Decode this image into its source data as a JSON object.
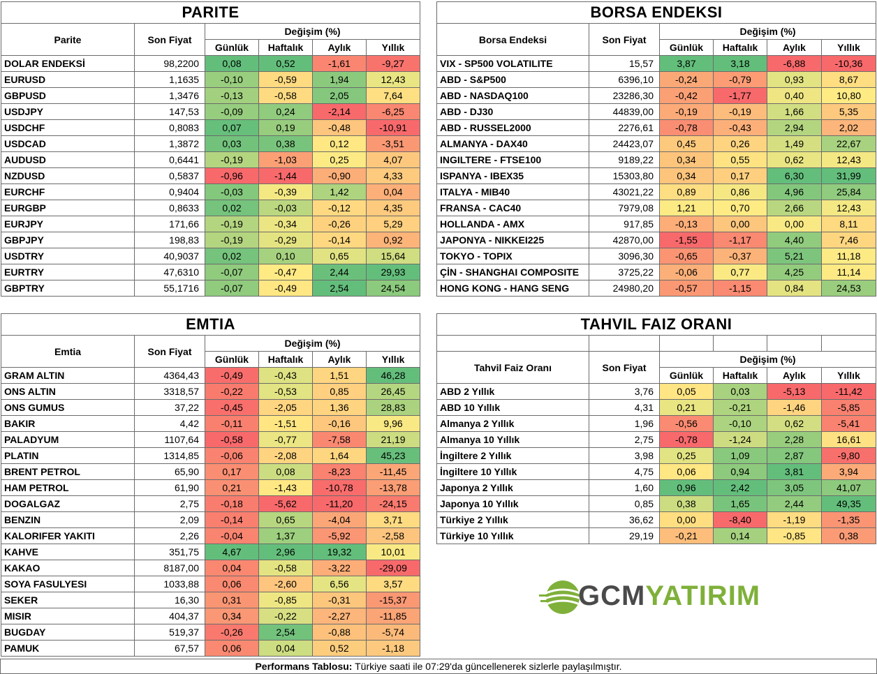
{
  "footer": {
    "bold": "Performans Tablosu:",
    "text": " Türkiye saati ile 07:29'da güncellenerek sizlerle paylaşılmıştır."
  },
  "logo": {
    "part1": "GCM",
    "part2": "YATIRIM"
  },
  "headers": {
    "degisim": "Değişim (%)",
    "gunluk": "Günlük",
    "haftalik": "Haftalık",
    "aylik": "Aylık",
    "yillik": "Yıllık",
    "son_fiyat": "Son Fiyat"
  },
  "parite": {
    "title": "PARITE",
    "col": "Parite",
    "rows": [
      [
        "DOLAR ENDEKSİ",
        "98,2200",
        "0,08",
        "0,52",
        "-1,61",
        "-9,27"
      ],
      [
        "EURUSD",
        "1,1635",
        "-0,10",
        "-0,59",
        "1,94",
        "12,43"
      ],
      [
        "GBPUSD",
        "1,3476",
        "-0,13",
        "-0,58",
        "2,05",
        "7,64"
      ],
      [
        "USDJPY",
        "147,53",
        "-0,09",
        "0,24",
        "-2,14",
        "-6,25"
      ],
      [
        "USDCHF",
        "0,8083",
        "0,07",
        "0,19",
        "-0,48",
        "-10,91"
      ],
      [
        "USDCAD",
        "1,3872",
        "0,03",
        "0,38",
        "0,12",
        "-3,51"
      ],
      [
        "AUDUSD",
        "0,6441",
        "-0,19",
        "-1,03",
        "0,25",
        "4,07"
      ],
      [
        "NZDUSD",
        "0,5837",
        "-0,96",
        "-1,44",
        "-0,90",
        "4,33"
      ],
      [
        "EURCHF",
        "0,9404",
        "-0,03",
        "-0,39",
        "1,42",
        "0,04"
      ],
      [
        "EURGBP",
        "0,8633",
        "0,02",
        "-0,03",
        "-0,12",
        "4,35"
      ],
      [
        "EURJPY",
        "171,66",
        "-0,19",
        "-0,34",
        "-0,26",
        "5,29"
      ],
      [
        "GBPJPY",
        "198,83",
        "-0,19",
        "-0,29",
        "-0,14",
        "0,92"
      ],
      [
        "USDTRY",
        "40,9037",
        "0,02",
        "0,10",
        "0,65",
        "15,64"
      ],
      [
        "EURTRY",
        "47,6310",
        "-0,07",
        "-0,47",
        "2,44",
        "29,93"
      ],
      [
        "GBPTRY",
        "55,1716",
        "-0,07",
        "-0,49",
        "2,54",
        "24,54"
      ]
    ]
  },
  "borsa": {
    "title": "BORSA ENDEKSI",
    "col": "Borsa Endeksi",
    "rows": [
      [
        "VIX  - SP500 VOLATILITE",
        "15,57",
        "3,87",
        "3,18",
        "-6,88",
        "-10,36"
      ],
      [
        "ABD - S&P500",
        "6396,10",
        "-0,24",
        "-0,79",
        "0,93",
        "8,67"
      ],
      [
        "ABD - NASDAQ100",
        "23286,30",
        "-0,42",
        "-1,77",
        "0,40",
        "10,80"
      ],
      [
        "ABD - DJ30",
        "44839,00",
        "-0,19",
        "-0,19",
        "1,66",
        "5,35"
      ],
      [
        "ABD - RUSSEL2000",
        "2276,61",
        "-0,78",
        "-0,43",
        "2,94",
        "2,02"
      ],
      [
        "ALMANYA - DAX40",
        "24423,07",
        "0,45",
        "0,26",
        "1,49",
        "22,67"
      ],
      [
        "INGILTERE - FTSE100",
        "9189,22",
        "0,34",
        "0,55",
        "0,62",
        "12,43"
      ],
      [
        "ISPANYA - IBEX35",
        "15303,80",
        "0,34",
        "0,17",
        "6,30",
        "31,99"
      ],
      [
        "ITALYA - MIB40",
        "43021,22",
        "0,89",
        "0,86",
        "4,96",
        "25,84"
      ],
      [
        "FRANSA - CAC40",
        "7979,08",
        "1,21",
        "0,70",
        "2,66",
        "12,43"
      ],
      [
        "HOLLANDA - AMX",
        "917,85",
        "-0,13",
        "0,00",
        "0,00",
        "8,11"
      ],
      [
        "JAPONYA - NIKKEI225",
        "42870,00",
        "-1,55",
        "-1,17",
        "4,40",
        "7,46"
      ],
      [
        "TOKYO - TOPIX",
        "3096,30",
        "-0,65",
        "-0,37",
        "5,21",
        "11,18"
      ],
      [
        "ÇİN - SHANGHAI COMPOSITE",
        "3725,22",
        "-0,06",
        "0,77",
        "4,25",
        "11,14"
      ],
      [
        "HONG KONG - HANG SENG",
        "24980,20",
        "-0,57",
        "-1,15",
        "0,84",
        "24,53"
      ]
    ]
  },
  "emtia": {
    "title": "EMTIA",
    "col": "Emtia",
    "rows": [
      [
        "GRAM ALTIN",
        "4364,43",
        "-0,49",
        "-0,43",
        "1,51",
        "46,28"
      ],
      [
        "ONS ALTIN",
        "3318,57",
        "-0,22",
        "-0,53",
        "0,85",
        "26,45"
      ],
      [
        "ONS GUMUS",
        "37,22",
        "-0,45",
        "-2,05",
        "1,36",
        "28,83"
      ],
      [
        "BAKIR",
        "4,42",
        "-0,11",
        "-1,51",
        "-0,16",
        "9,96"
      ],
      [
        "PALADYUM",
        "1107,64",
        "-0,58",
        "-0,77",
        "-7,58",
        "21,19"
      ],
      [
        "PLATIN",
        "1314,85",
        "-0,06",
        "-2,08",
        "1,64",
        "45,23"
      ],
      [
        "BRENT PETROL",
        "65,90",
        "0,17",
        "0,08",
        "-8,23",
        "-11,45"
      ],
      [
        "HAM PETROL",
        "61,90",
        "0,21",
        "-1,43",
        "-10,78",
        "-13,78"
      ],
      [
        "DOGALGAZ",
        "2,75",
        "-0,18",
        "-5,62",
        "-11,20",
        "-24,15"
      ],
      [
        "BENZIN",
        "2,09",
        "-0,14",
        "0,65",
        "-4,04",
        "3,71"
      ],
      [
        "KALORIFER YAKITI",
        "2,26",
        "-0,04",
        "1,37",
        "-5,92",
        "-2,58"
      ],
      [
        "KAHVE",
        "351,75",
        "4,67",
        "2,96",
        "19,32",
        "10,01"
      ],
      [
        "KAKAO",
        "8187,00",
        "0,04",
        "-0,58",
        "-3,22",
        "-29,09"
      ],
      [
        "SOYA FASULYESI",
        "1033,88",
        "0,06",
        "-2,60",
        "6,56",
        "3,57"
      ],
      [
        "SEKER",
        "16,30",
        "0,31",
        "-0,85",
        "-0,31",
        "-15,37"
      ],
      [
        "MISIR",
        "404,37",
        "0,34",
        "-0,22",
        "-2,27",
        "-11,85"
      ],
      [
        "BUGDAY",
        "519,37",
        "-0,26",
        "2,54",
        "-0,88",
        "-5,74"
      ],
      [
        "PAMUK",
        "67,57",
        "0,06",
        "0,04",
        "0,52",
        "-1,18"
      ]
    ]
  },
  "tahvil": {
    "title": "TAHVIL FAIZ ORANI",
    "col": "Tahvil Faiz Oranı",
    "rows": [
      [
        "ABD 2 Yıllık",
        "3,76",
        "0,05",
        "0,03",
        "-5,13",
        "-11,42"
      ],
      [
        "ABD 10 Yıllık",
        "4,31",
        "0,21",
        "-0,21",
        "-1,46",
        "-5,85"
      ],
      [
        "Almanya 2 Yıllık",
        "1,96",
        "-0,56",
        "-0,10",
        "0,62",
        "-5,41"
      ],
      [
        "Almanya 10 Yıllık",
        "2,75",
        "-0,78",
        "-1,24",
        "2,28",
        "16,61"
      ],
      [
        "İngiltere 2 Yıllık",
        "3,98",
        "0,25",
        "1,09",
        "2,87",
        "-9,80"
      ],
      [
        "İngiltere 10 Yıllık",
        "4,75",
        "0,06",
        "0,94",
        "3,81",
        "3,94"
      ],
      [
        "Japonya 2 Yıllık",
        "1,60",
        "0,96",
        "2,42",
        "3,05",
        "41,07"
      ],
      [
        "Japonya 10 Yıllık",
        "0,85",
        "0,38",
        "1,65",
        "2,44",
        "49,35"
      ],
      [
        "Türkiye 2 Yıllık",
        "36,62",
        "0,00",
        "-8,40",
        "-1,19",
        "-1,35"
      ],
      [
        "Türkiye 10 Yıllık",
        "29,19",
        "-0,21",
        "0,14",
        "-0,85",
        "0,38"
      ]
    ]
  }
}
